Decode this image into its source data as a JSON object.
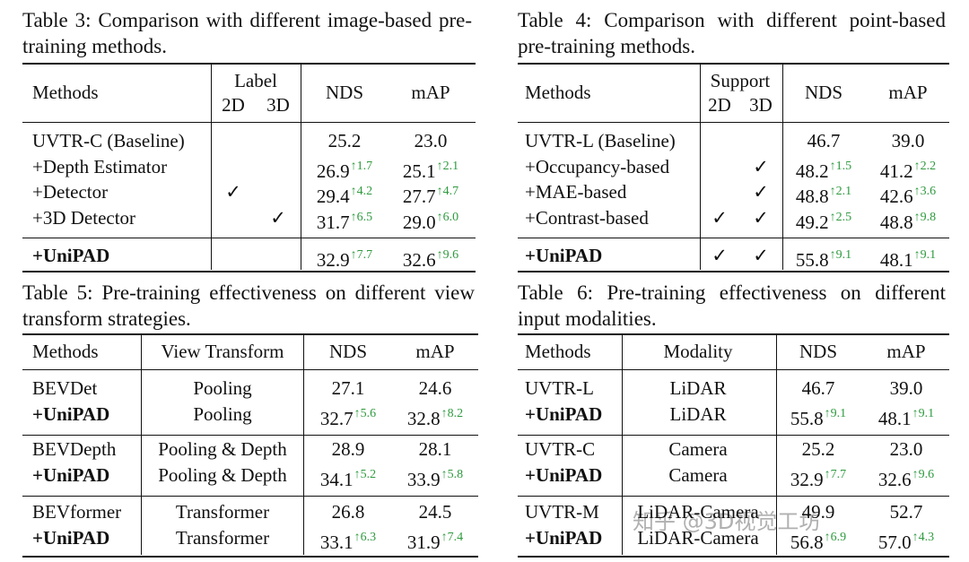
{
  "table3": {
    "caption": "Table 3: Comparison with different image-based pre-training methods.",
    "header": {
      "methods": "Methods",
      "group": "Label",
      "d2": "2D",
      "d3": "3D",
      "nds": "NDS",
      "map": "mAP"
    },
    "rows": [
      {
        "method": "UVTR-C (Baseline)",
        "nds": "25.2",
        "map": "23.0"
      },
      {
        "method": "+Depth Estimator",
        "nds": "26.9",
        "nds_gain": "↑1.7",
        "map": "25.1",
        "map_gain": "↑2.1"
      },
      {
        "method": "+Detector",
        "d2": "✓",
        "nds": "29.4",
        "nds_gain": "↑4.2",
        "map": "27.7",
        "map_gain": "↑4.7"
      },
      {
        "method": "+3D Detector",
        "d3": "✓",
        "nds": "31.7",
        "nds_gain": "↑6.5",
        "map": "29.0",
        "map_gain": "↑6.0"
      },
      {
        "method": "+UniPAD",
        "nds": "32.9",
        "nds_gain": "↑7.7",
        "map": "32.6",
        "map_gain": "↑9.6"
      }
    ]
  },
  "table4": {
    "caption": "Table 4: Comparison with different point-based pre-training methods.",
    "header": {
      "methods": "Methods",
      "group": "Support",
      "d2": "2D",
      "d3": "3D",
      "nds": "NDS",
      "map": "mAP"
    },
    "rows": [
      {
        "method": "UVTR-L (Baseline)",
        "nds": "46.7",
        "map": "39.0"
      },
      {
        "method": "+Occupancy-based",
        "d3": "✓",
        "nds": "48.2",
        "nds_gain": "↑1.5",
        "map": "41.2",
        "map_gain": "↑2.2"
      },
      {
        "method": "+MAE-based",
        "d3": "✓",
        "nds": "48.8",
        "nds_gain": "↑2.1",
        "map": "42.6",
        "map_gain": "↑3.6"
      },
      {
        "method": "+Contrast-based",
        "d2": "✓",
        "d3": "✓",
        "nds": "49.2",
        "nds_gain": "↑2.5",
        "map": "48.8",
        "map_gain": "↑9.8"
      },
      {
        "method": "+UniPAD",
        "d2": "✓",
        "d3": "✓",
        "nds": "55.8",
        "nds_gain": "↑9.1",
        "map": "48.1",
        "map_gain": "↑9.1"
      }
    ]
  },
  "table5": {
    "caption": "Table 5: Pre-training effectiveness on different view transform strategies.",
    "header": {
      "methods": "Methods",
      "mid": "View Transform",
      "nds": "NDS",
      "map": "mAP"
    },
    "rows": [
      {
        "method": "BEVDet",
        "mid": "Pooling",
        "nds": "27.1",
        "map": "24.6"
      },
      {
        "method": "+UniPAD",
        "mid": "Pooling",
        "nds": "32.7",
        "nds_gain": "↑5.6",
        "map": "32.8",
        "map_gain": "↑8.2"
      },
      {
        "method": "BEVDepth",
        "mid": "Pooling & Depth",
        "nds": "28.9",
        "map": "28.1"
      },
      {
        "method": "+UniPAD",
        "mid": "Pooling & Depth",
        "nds": "34.1",
        "nds_gain": "↑5.2",
        "map": "33.9",
        "map_gain": "↑5.8"
      },
      {
        "method": "BEVformer",
        "mid": "Transformer",
        "nds": "26.8",
        "map": "24.5"
      },
      {
        "method": "+UniPAD",
        "mid": "Transformer",
        "nds": "33.1",
        "nds_gain": "↑6.3",
        "map": "31.9",
        "map_gain": "↑7.4"
      }
    ]
  },
  "table6": {
    "caption": "Table 6: Pre-training effectiveness on different input modalities.",
    "header": {
      "methods": "Methods",
      "mid": "Modality",
      "nds": "NDS",
      "map": "mAP"
    },
    "rows": [
      {
        "method": "UVTR-L",
        "mid": "LiDAR",
        "nds": "46.7",
        "map": "39.0"
      },
      {
        "method": "+UniPAD",
        "mid": "LiDAR",
        "nds": "55.8",
        "nds_gain": "↑9.1",
        "map": "48.1",
        "map_gain": "↑9.1"
      },
      {
        "method": "UVTR-C",
        "mid": "Camera",
        "nds": "25.2",
        "map": "23.0"
      },
      {
        "method": "+UniPAD",
        "mid": "Camera",
        "nds": "32.9",
        "nds_gain": "↑7.7",
        "map": "32.6",
        "map_gain": "↑9.6"
      },
      {
        "method": "UVTR-M",
        "mid": "LiDAR-Camera",
        "nds": "49.9",
        "map": "52.7"
      },
      {
        "method": "+UniPAD",
        "mid": "LiDAR-Camera",
        "nds": "56.8",
        "nds_gain": "↑6.9",
        "map": "57.0",
        "map_gain": "↑4.3"
      }
    ]
  },
  "watermark": "知乎 @3D视觉工坊"
}
